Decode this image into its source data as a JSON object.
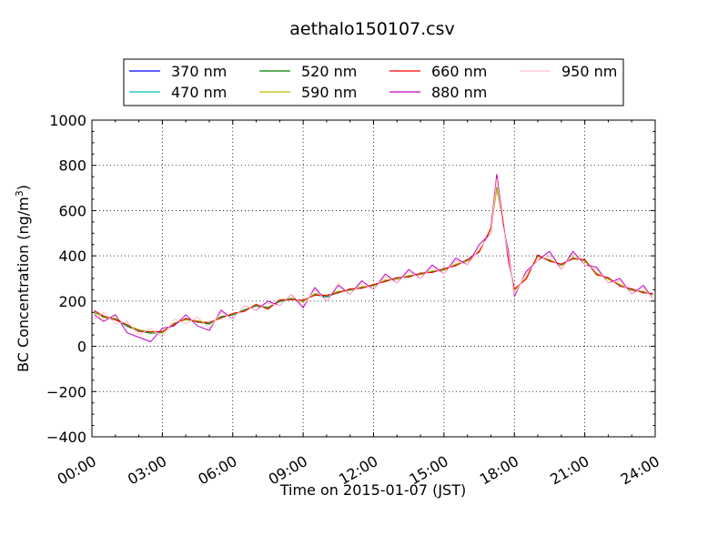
{
  "chart_data": {
    "type": "line",
    "title": "aethalo150107.csv",
    "xlabel": "Time on 2015-01-07 (JST)",
    "ylabel": "BC Concentration (ng/m³)",
    "ylabel_parts": {
      "main": "BC Concentration (ng/m",
      "sup": "3",
      "close": ")"
    },
    "x_unit": "hour",
    "xlim": [
      0,
      24
    ],
    "ylim": [
      -400,
      1000
    ],
    "xticks": [
      {
        "value": 0,
        "label": "00:00"
      },
      {
        "value": 3,
        "label": "03:00"
      },
      {
        "value": 6,
        "label": "06:00"
      },
      {
        "value": 9,
        "label": "09:00"
      },
      {
        "value": 12,
        "label": "12:00"
      },
      {
        "value": 15,
        "label": "15:00"
      },
      {
        "value": 18,
        "label": "18:00"
      },
      {
        "value": 21,
        "label": "21:00"
      },
      {
        "value": 24,
        "label": "24:00"
      }
    ],
    "yticks": [
      {
        "value": -400,
        "label": "−400"
      },
      {
        "value": -200,
        "label": "−200"
      },
      {
        "value": 0,
        "label": "0"
      },
      {
        "value": 200,
        "label": "200"
      },
      {
        "value": 400,
        "label": "400"
      },
      {
        "value": 600,
        "label": "600"
      },
      {
        "value": 800,
        "label": "800"
      },
      {
        "value": 1000,
        "label": "1000"
      }
    ],
    "grid": true,
    "legend": {
      "placement": "top",
      "columns": 4
    },
    "x": [
      0.1,
      0.5,
      1.0,
      1.5,
      2.0,
      2.5,
      3.0,
      3.5,
      4.0,
      4.5,
      5.0,
      5.5,
      6.0,
      6.5,
      7.0,
      7.5,
      8.0,
      8.5,
      9.0,
      9.5,
      10.0,
      10.5,
      11.0,
      11.5,
      12.0,
      12.5,
      13.0,
      13.5,
      14.0,
      14.5,
      15.0,
      15.5,
      16.0,
      16.5,
      17.0,
      17.25,
      17.5,
      17.75,
      18.0,
      18.5,
      19.0,
      19.5,
      20.0,
      20.5,
      21.0,
      21.5,
      22.0,
      22.5,
      23.0,
      23.5,
      23.9
    ],
    "series": [
      {
        "name": "370 nm",
        "color": "#0000ff",
        "values": [
          150,
          130,
          120,
          90,
          70,
          60,
          60,
          100,
          120,
          110,
          100,
          130,
          140,
          160,
          180,
          170,
          200,
          210,
          200,
          230,
          220,
          240,
          250,
          260,
          270,
          290,
          300,
          310,
          320,
          330,
          340,
          360,
          380,
          420,
          520,
          700,
          560,
          380,
          250,
          300,
          400,
          380,
          360,
          390,
          380,
          320,
          300,
          270,
          250,
          240,
          230
        ]
      },
      {
        "name": "470 nm",
        "color": "#00bfbf",
        "values": [
          155,
          128,
          118,
          92,
          72,
          62,
          62,
          102,
          118,
          112,
          102,
          128,
          142,
          158,
          182,
          168,
          202,
          212,
          198,
          232,
          222,
          242,
          248,
          262,
          268,
          292,
          298,
          312,
          318,
          332,
          338,
          362,
          378,
          422,
          518,
          698,
          558,
          382,
          248,
          302,
          398,
          382,
          358,
          392,
          378,
          322,
          298,
          272,
          248,
          242,
          228
        ]
      },
      {
        "name": "520 nm",
        "color": "#008000",
        "values": [
          148,
          132,
          122,
          88,
          68,
          58,
          64,
          98,
          122,
          108,
          98,
          132,
          138,
          162,
          178,
          172,
          198,
          208,
          202,
          228,
          218,
          238,
          252,
          258,
          272,
          288,
          302,
          308,
          322,
          328,
          342,
          358,
          382,
          418,
          522,
          702,
          562,
          378,
          252,
          298,
          402,
          378,
          362,
          388,
          382,
          318,
          302,
          268,
          252,
          238,
          232
        ]
      },
      {
        "name": "590 nm",
        "color": "#bfbf00",
        "values": [
          152,
          126,
          124,
          94,
          74,
          64,
          58,
          104,
          116,
          114,
          104,
          126,
          144,
          156,
          184,
          166,
          204,
          214,
          196,
          234,
          224,
          244,
          246,
          264,
          266,
          294,
          296,
          314,
          316,
          334,
          336,
          364,
          376,
          424,
          516,
          696,
          556,
          384,
          246,
          304,
          396,
          384,
          356,
          394,
          376,
          324,
          296,
          274,
          246,
          244,
          226
        ]
      },
      {
        "name": "660 nm",
        "color": "#ff0000",
        "values": [
          158,
          134,
          116,
          96,
          66,
          66,
          66,
          96,
          124,
          106,
          106,
          124,
          146,
          154,
          186,
          164,
          206,
          206,
          204,
          226,
          226,
          236,
          254,
          256,
          274,
          286,
          304,
          306,
          324,
          326,
          344,
          356,
          384,
          416,
          524,
          760,
          564,
          376,
          254,
          296,
          404,
          376,
          364,
          386,
          384,
          316,
          304,
          266,
          254,
          236,
          234
        ]
      },
      {
        "name": "880 nm",
        "color": "#bf00bf",
        "values": [
          140,
          110,
          140,
          60,
          40,
          20,
          80,
          90,
          140,
          90,
          70,
          160,
          120,
          180,
          160,
          200,
          180,
          230,
          170,
          260,
          200,
          270,
          230,
          290,
          250,
          320,
          280,
          340,
          300,
          360,
          320,
          390,
          360,
          450,
          500,
          760,
          540,
          420,
          220,
          330,
          380,
          420,
          340,
          420,
          360,
          350,
          280,
          300,
          230,
          270,
          210
        ]
      },
      {
        "name": "950 nm",
        "color": "#ffc0cb",
        "values": [
          120,
          150,
          100,
          110,
          50,
          80,
          40,
          120,
          100,
          130,
          80,
          150,
          120,
          180,
          160,
          190,
          180,
          230,
          180,
          250,
          200,
          280,
          230,
          280,
          250,
          310,
          280,
          330,
          300,
          350,
          320,
          380,
          360,
          430,
          500,
          740,
          540,
          400,
          230,
          320,
          380,
          400,
          340,
          410,
          360,
          340,
          280,
          290,
          230,
          260,
          210
        ]
      }
    ]
  }
}
